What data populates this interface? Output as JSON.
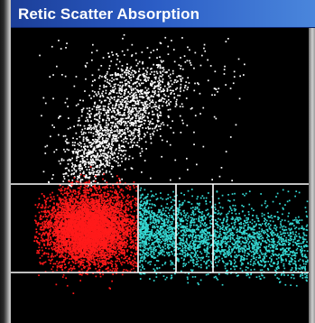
{
  "window": {
    "title": "Retic Scatter Absorption"
  },
  "scattergram": {
    "background_color": "#000000",
    "gate_line_color": "#ffffff",
    "populations": [
      {
        "id": "white-population",
        "color": "#ffffff",
        "count": 1800
      },
      {
        "id": "red-population",
        "color": "#ff1a1a",
        "count": 5500
      },
      {
        "id": "cyan-population",
        "color": "#35d7d2",
        "count": 2600
      }
    ]
  }
}
